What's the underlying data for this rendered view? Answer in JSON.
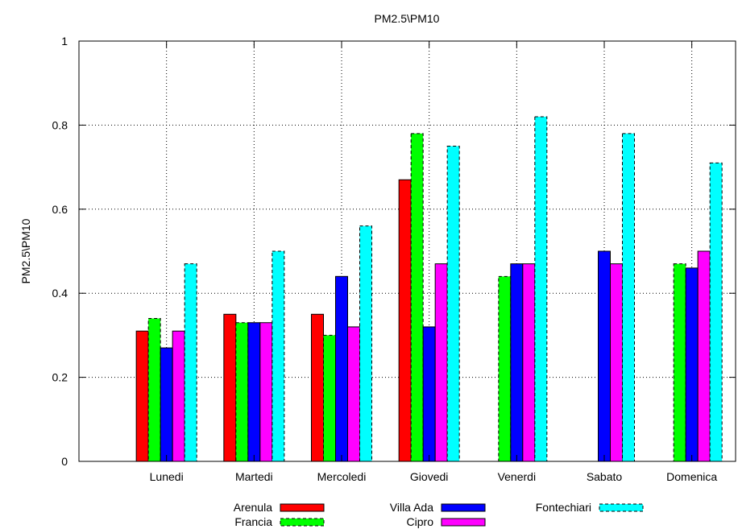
{
  "chart_data": {
    "type": "bar",
    "title": "PM2.5\\PM10",
    "xlabel": "",
    "ylabel": "PM2.5\\PM10",
    "ylim": [
      0,
      1
    ],
    "yticks": [
      "0",
      "0.2",
      "0.4",
      "0.6",
      "0.8",
      "1"
    ],
    "ytick_values": [
      0,
      0.2,
      0.4,
      0.6,
      0.8,
      1
    ],
    "grid": true,
    "legend_position": "bottom",
    "categories": [
      "Lunedi",
      "Martedi",
      "Mercoledi",
      "Giovedi",
      "Venerdi",
      "Sabato",
      "Domenica"
    ],
    "series": [
      {
        "name": "Arenula",
        "color": "#ff0000",
        "dashed": false,
        "values": [
          0.31,
          0.35,
          0.35,
          0.67,
          null,
          null,
          null
        ]
      },
      {
        "name": "Francia",
        "color": "#00ff00",
        "dashed": true,
        "values": [
          0.34,
          0.33,
          0.3,
          0.78,
          0.44,
          null,
          0.47
        ]
      },
      {
        "name": "Villa Ada",
        "color": "#0000ff",
        "dashed": false,
        "values": [
          0.27,
          0.33,
          0.44,
          0.32,
          0.47,
          0.5,
          0.46
        ]
      },
      {
        "name": "Cipro",
        "color": "#ff00ff",
        "dashed": false,
        "values": [
          0.31,
          0.33,
          0.32,
          0.47,
          0.47,
          0.47,
          0.5
        ]
      },
      {
        "name": "Fontechiari",
        "color": "#00ffff",
        "dashed": true,
        "values": [
          0.47,
          0.5,
          0.56,
          0.75,
          0.82,
          0.78,
          0.71
        ]
      }
    ]
  }
}
